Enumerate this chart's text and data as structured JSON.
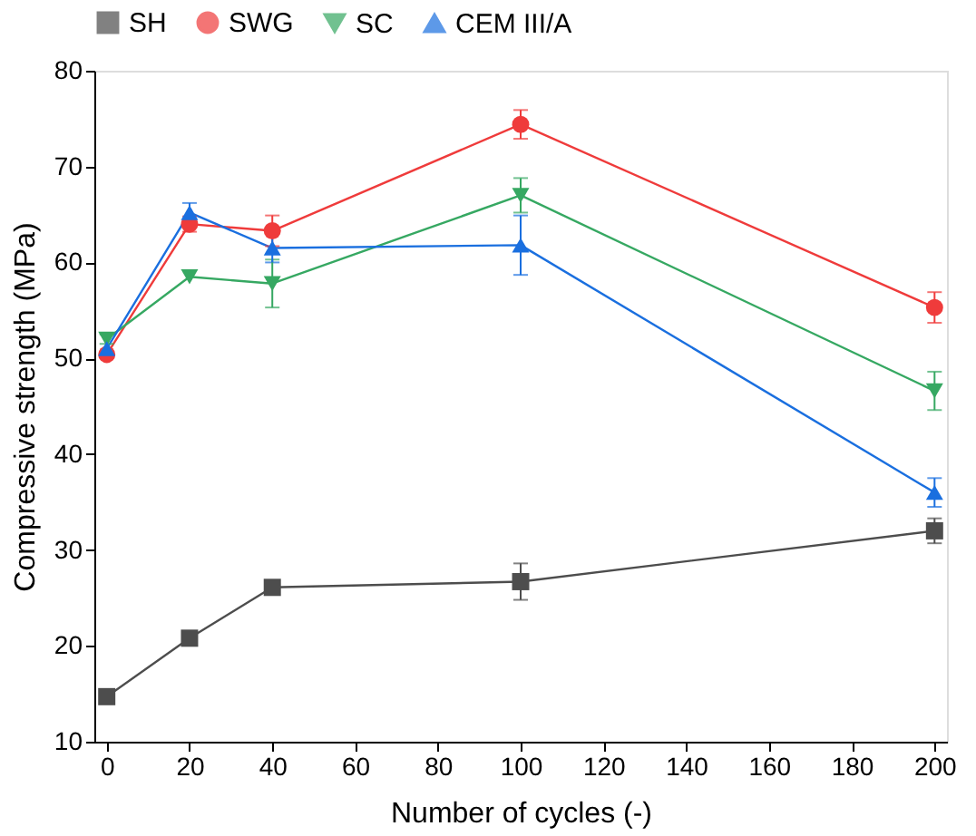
{
  "chart_data": {
    "type": "line",
    "xlabel": "Number of cycles (-)",
    "ylabel": "Compressive strength (MPa)",
    "x": [
      0,
      20,
      40,
      100,
      200
    ],
    "series": [
      {
        "name": "SH",
        "color": "#4d4d4d",
        "marker": "square",
        "values": [
          14.7,
          20.8,
          26.1,
          26.7,
          32.0
        ],
        "errors": [
          null,
          null,
          null,
          1.9,
          1.3
        ]
      },
      {
        "name": "SWG",
        "color": "#ef3b3b",
        "marker": "circle",
        "values": [
          50.4,
          64.0,
          63.3,
          74.4,
          55.3
        ],
        "errors": [
          null,
          0.8,
          1.6,
          1.5,
          1.6
        ]
      },
      {
        "name": "SC",
        "color": "#36a862",
        "marker": "triangle-down",
        "values": [
          52.0,
          58.5,
          57.8,
          67.0,
          46.6
        ],
        "errors": [
          0.5,
          null,
          2.5,
          1.8,
          2.0
        ]
      },
      {
        "name": "CEM III/A",
        "color": "#1a6fdf",
        "marker": "triangle-up",
        "values": [
          51.0,
          65.2,
          61.5,
          61.8,
          36.0
        ],
        "errors": [
          null,
          1.0,
          1.5,
          3.1,
          1.5
        ]
      }
    ],
    "xlim": [
      -3,
      203
    ],
    "xticks": [
      0,
      20,
      40,
      60,
      80,
      100,
      120,
      140,
      160,
      180,
      200
    ],
    "ylim": [
      10,
      80
    ],
    "yticks": [
      10,
      20,
      30,
      40,
      50,
      60,
      70,
      80
    ],
    "grid": false,
    "legend": "top",
    "line_style": "solid"
  }
}
